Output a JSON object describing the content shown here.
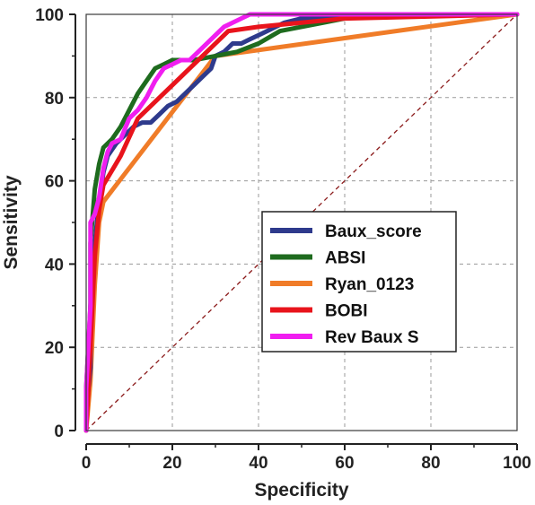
{
  "chart_data": {
    "type": "line",
    "title": "",
    "xlabel": "Specificity",
    "ylabel": "Sensitivity",
    "xlim": [
      0,
      100
    ],
    "ylim": [
      0,
      100
    ],
    "x_ticks": [
      "0",
      "20",
      "40",
      "60",
      "80",
      "100"
    ],
    "y_ticks": [
      "0",
      "20",
      "40",
      "60",
      "80",
      "100"
    ],
    "grid": true,
    "legend_position": "center-right",
    "reference_line": {
      "from": [
        0,
        0
      ],
      "to": [
        100,
        100
      ],
      "color": "#8b1a1a",
      "style": "dashed"
    },
    "series": [
      {
        "name": "Baux_score",
        "color": "#2e3a8c",
        "points": [
          [
            0,
            0
          ],
          [
            0,
            5
          ],
          [
            1,
            15
          ],
          [
            1,
            30
          ],
          [
            2,
            45
          ],
          [
            3,
            55
          ],
          [
            4,
            62
          ],
          [
            5,
            66
          ],
          [
            7,
            69
          ],
          [
            9,
            71
          ],
          [
            11,
            73
          ],
          [
            13,
            74
          ],
          [
            15,
            74
          ],
          [
            17,
            76
          ],
          [
            19,
            78
          ],
          [
            21,
            79
          ],
          [
            23,
            81
          ],
          [
            25,
            83
          ],
          [
            27,
            85
          ],
          [
            29,
            87
          ],
          [
            30,
            90
          ],
          [
            32,
            91
          ],
          [
            34,
            93
          ],
          [
            36,
            93
          ],
          [
            38,
            94
          ],
          [
            40,
            95
          ],
          [
            42,
            96
          ],
          [
            44,
            97
          ],
          [
            46,
            98
          ],
          [
            50,
            99
          ],
          [
            55,
            99
          ],
          [
            60,
            100
          ],
          [
            100,
            100
          ]
        ]
      },
      {
        "name": "ABSI",
        "color": "#1e6b1e",
        "points": [
          [
            0,
            0
          ],
          [
            0,
            10
          ],
          [
            1,
            30
          ],
          [
            1,
            45
          ],
          [
            2,
            58
          ],
          [
            3,
            64
          ],
          [
            4,
            68
          ],
          [
            6,
            70
          ],
          [
            8,
            73
          ],
          [
            10,
            77
          ],
          [
            12,
            81
          ],
          [
            14,
            84
          ],
          [
            16,
            87
          ],
          [
            18,
            88
          ],
          [
            20,
            89
          ],
          [
            25,
            89
          ],
          [
            30,
            90
          ],
          [
            35,
            91
          ],
          [
            40,
            93
          ],
          [
            45,
            96
          ],
          [
            50,
            97
          ],
          [
            55,
            98
          ],
          [
            60,
            99
          ],
          [
            65,
            100
          ],
          [
            100,
            100
          ]
        ]
      },
      {
        "name": "Ryan_0123",
        "color": "#f07c28",
        "points": [
          [
            0,
            0
          ],
          [
            1,
            12
          ],
          [
            2,
            35
          ],
          [
            3,
            50
          ],
          [
            4,
            55
          ],
          [
            30,
            90
          ],
          [
            100,
            100
          ]
        ]
      },
      {
        "name": "BOBI",
        "color": "#e8141c",
        "points": [
          [
            0,
            0
          ],
          [
            1,
            20
          ],
          [
            2,
            42
          ],
          [
            3,
            53
          ],
          [
            4,
            59
          ],
          [
            8,
            66
          ],
          [
            12,
            75
          ],
          [
            20,
            83
          ],
          [
            25,
            88
          ],
          [
            30,
            93
          ],
          [
            33,
            96
          ],
          [
            40,
            97
          ],
          [
            50,
            98
          ],
          [
            60,
            99
          ],
          [
            100,
            100
          ]
        ]
      },
      {
        "name": "Rev Baux S",
        "color": "#f01ef0",
        "points": [
          [
            0,
            0
          ],
          [
            0,
            10
          ],
          [
            1,
            30
          ],
          [
            1,
            50
          ],
          [
            2,
            52
          ],
          [
            3,
            56
          ],
          [
            4,
            63
          ],
          [
            5,
            67
          ],
          [
            6,
            69
          ],
          [
            8,
            70
          ],
          [
            10,
            75
          ],
          [
            12,
            77
          ],
          [
            14,
            80
          ],
          [
            16,
            84
          ],
          [
            18,
            87
          ],
          [
            20,
            88
          ],
          [
            22,
            89
          ],
          [
            24,
            89
          ],
          [
            26,
            91
          ],
          [
            28,
            93
          ],
          [
            30,
            95
          ],
          [
            32,
            97
          ],
          [
            34,
            98
          ],
          [
            38,
            100
          ],
          [
            100,
            100
          ]
        ]
      }
    ]
  }
}
